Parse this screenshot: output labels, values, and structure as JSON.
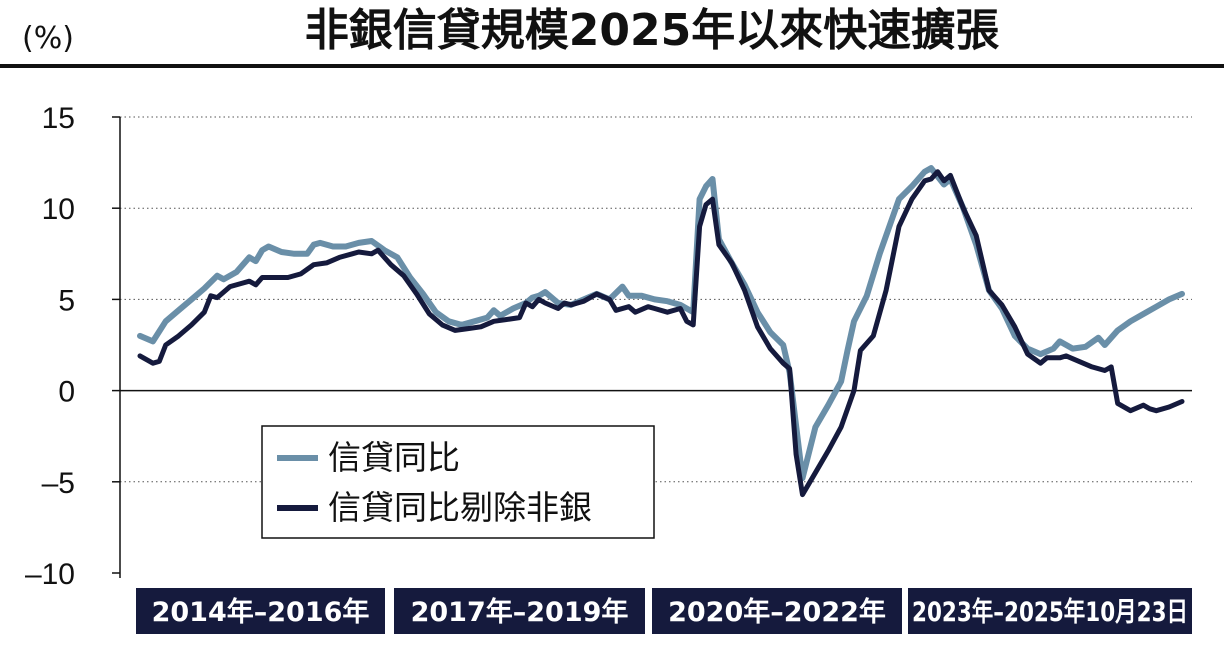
{
  "chart_data": {
    "type": "line",
    "title": "非銀信貸規模2025年以來快速擴張",
    "unit_label": "(%)",
    "ylim": [
      -10,
      15
    ],
    "yticks": [
      {
        "value": 15,
        "label": "15"
      },
      {
        "value": 10,
        "label": "10"
      },
      {
        "value": 5,
        "label": "5"
      },
      {
        "value": 0,
        "label": "0"
      },
      {
        "value": -5,
        "label": "–5"
      },
      {
        "value": -10,
        "label": "–10"
      }
    ],
    "grid": "horizontal dotted",
    "legend_position": "lower-left",
    "periods": [
      {
        "label": "2014年–2016年",
        "start": 0,
        "end": 36
      },
      {
        "label": "2017年–2019年",
        "start": 36,
        "end": 72
      },
      {
        "label": "2020年–2022年",
        "start": 72,
        "end": 108
      },
      {
        "label": "2023年–2025年10月23日",
        "start": 108,
        "end": 142
      }
    ],
    "series": [
      {
        "name": "信貸同比",
        "color": "#6a8fa8",
        "points": [
          [
            0,
            3.0
          ],
          [
            2,
            2.7
          ],
          [
            4,
            3.8
          ],
          [
            6,
            4.4
          ],
          [
            8,
            5.0
          ],
          [
            10,
            5.6
          ],
          [
            12,
            6.3
          ],
          [
            13,
            6.1
          ],
          [
            15,
            6.5
          ],
          [
            17,
            7.3
          ],
          [
            18,
            7.1
          ],
          [
            19,
            7.7
          ],
          [
            20,
            7.9
          ],
          [
            22,
            7.6
          ],
          [
            24,
            7.5
          ],
          [
            26,
            7.5
          ],
          [
            27,
            8.0
          ],
          [
            28,
            8.1
          ],
          [
            30,
            7.9
          ],
          [
            32,
            7.9
          ],
          [
            34,
            8.1
          ],
          [
            36,
            8.2
          ],
          [
            38,
            7.7
          ],
          [
            40,
            7.3
          ],
          [
            42,
            6.2
          ],
          [
            44,
            5.3
          ],
          [
            46,
            4.3
          ],
          [
            48,
            3.8
          ],
          [
            50,
            3.6
          ],
          [
            52,
            3.8
          ],
          [
            54,
            4.0
          ],
          [
            55,
            4.4
          ],
          [
            56,
            4.1
          ],
          [
            58,
            4.5
          ],
          [
            60,
            4.8
          ],
          [
            61,
            5.1
          ],
          [
            62,
            5.2
          ],
          [
            63,
            5.4
          ],
          [
            65,
            4.8
          ],
          [
            67,
            4.7
          ],
          [
            69,
            5.0
          ],
          [
            71,
            5.3
          ],
          [
            73,
            5.0
          ],
          [
            75,
            5.7
          ],
          [
            76,
            5.2
          ],
          [
            78,
            5.2
          ],
          [
            80,
            5.0
          ],
          [
            82,
            4.9
          ],
          [
            84,
            4.7
          ],
          [
            86,
            4.3
          ],
          [
            87,
            10.5
          ],
          [
            88,
            11.2
          ],
          [
            89,
            11.6
          ],
          [
            90,
            8.3
          ],
          [
            92,
            7.0
          ],
          [
            94,
            5.8
          ],
          [
            96,
            4.3
          ],
          [
            98,
            3.2
          ],
          [
            100,
            2.5
          ],
          [
            101,
            1.0
          ],
          [
            103,
            -4.8
          ],
          [
            105,
            -2.0
          ],
          [
            107,
            -0.8
          ],
          [
            109,
            0.5
          ],
          [
            110,
            2.2
          ],
          [
            111,
            3.8
          ],
          [
            113,
            5.2
          ],
          [
            115,
            7.5
          ],
          [
            117,
            9.5
          ],
          [
            118,
            10.5
          ],
          [
            120,
            11.2
          ],
          [
            122,
            12.0
          ],
          [
            123,
            12.2
          ],
          [
            125,
            11.3
          ],
          [
            126,
            11.6
          ],
          [
            128,
            10.0
          ],
          [
            130,
            8.0
          ],
          [
            132,
            5.5
          ],
          [
            134,
            4.5
          ],
          [
            136,
            3.0
          ],
          [
            138,
            2.3
          ],
          [
            140,
            2.0
          ],
          [
            142,
            2.3
          ],
          [
            143,
            2.7
          ],
          [
            145,
            2.3
          ],
          [
            147,
            2.4
          ],
          [
            149,
            2.9
          ],
          [
            150,
            2.5
          ],
          [
            152,
            3.3
          ],
          [
            154,
            3.8
          ],
          [
            156,
            4.2
          ],
          [
            158,
            4.6
          ],
          [
            160,
            5.0
          ],
          [
            162,
            5.3
          ]
        ]
      },
      {
        "name": "信貸同比剔除非銀",
        "color": "#151a3d",
        "points": [
          [
            0,
            1.9
          ],
          [
            2,
            1.5
          ],
          [
            3,
            1.6
          ],
          [
            4,
            2.5
          ],
          [
            6,
            3.0
          ],
          [
            8,
            3.6
          ],
          [
            10,
            4.3
          ],
          [
            11,
            5.2
          ],
          [
            12,
            5.1
          ],
          [
            14,
            5.7
          ],
          [
            16,
            5.9
          ],
          [
            17,
            6.0
          ],
          [
            18,
            5.8
          ],
          [
            19,
            6.2
          ],
          [
            21,
            6.2
          ],
          [
            23,
            6.2
          ],
          [
            25,
            6.4
          ],
          [
            27,
            6.9
          ],
          [
            29,
            7.0
          ],
          [
            31,
            7.3
          ],
          [
            33,
            7.5
          ],
          [
            34,
            7.6
          ],
          [
            36,
            7.5
          ],
          [
            37,
            7.7
          ],
          [
            39,
            6.9
          ],
          [
            41,
            6.3
          ],
          [
            43,
            5.3
          ],
          [
            45,
            4.2
          ],
          [
            47,
            3.6
          ],
          [
            49,
            3.3
          ],
          [
            51,
            3.4
          ],
          [
            53,
            3.5
          ],
          [
            55,
            3.8
          ],
          [
            57,
            3.9
          ],
          [
            59,
            4.0
          ],
          [
            60,
            4.8
          ],
          [
            61,
            4.6
          ],
          [
            62,
            5.0
          ],
          [
            63,
            4.8
          ],
          [
            65,
            4.5
          ],
          [
            66,
            4.8
          ],
          [
            67,
            4.7
          ],
          [
            69,
            4.9
          ],
          [
            71,
            5.3
          ],
          [
            73,
            5.0
          ],
          [
            74,
            4.4
          ],
          [
            76,
            4.6
          ],
          [
            77,
            4.3
          ],
          [
            79,
            4.6
          ],
          [
            80,
            4.5
          ],
          [
            82,
            4.3
          ],
          [
            84,
            4.5
          ],
          [
            85,
            3.8
          ],
          [
            86,
            3.6
          ],
          [
            87,
            9.0
          ],
          [
            88,
            10.2
          ],
          [
            89,
            10.5
          ],
          [
            90,
            8.0
          ],
          [
            92,
            7.0
          ],
          [
            94,
            5.5
          ],
          [
            96,
            3.5
          ],
          [
            98,
            2.3
          ],
          [
            100,
            1.5
          ],
          [
            101,
            1.2
          ],
          [
            102,
            -3.5
          ],
          [
            103,
            -5.7
          ],
          [
            105,
            -4.5
          ],
          [
            107,
            -3.3
          ],
          [
            109,
            -2.0
          ],
          [
            111,
            0.0
          ],
          [
            112,
            2.2
          ],
          [
            114,
            3.0
          ],
          [
            116,
            5.5
          ],
          [
            118,
            9.0
          ],
          [
            120,
            10.5
          ],
          [
            122,
            11.5
          ],
          [
            123,
            11.6
          ],
          [
            124,
            12.0
          ],
          [
            125,
            11.5
          ],
          [
            126,
            11.8
          ],
          [
            128,
            10.0
          ],
          [
            130,
            8.5
          ],
          [
            132,
            5.5
          ],
          [
            134,
            4.7
          ],
          [
            136,
            3.5
          ],
          [
            138,
            2.0
          ],
          [
            140,
            1.5
          ],
          [
            141,
            1.8
          ],
          [
            143,
            1.8
          ],
          [
            144,
            1.9
          ],
          [
            146,
            1.6
          ],
          [
            148,
            1.3
          ],
          [
            150,
            1.1
          ],
          [
            151,
            1.3
          ],
          [
            152,
            -0.7
          ],
          [
            154,
            -1.1
          ],
          [
            156,
            -0.8
          ],
          [
            157,
            -1.0
          ],
          [
            158,
            -1.1
          ],
          [
            160,
            -0.9
          ],
          [
            162,
            -0.6
          ]
        ]
      }
    ]
  }
}
